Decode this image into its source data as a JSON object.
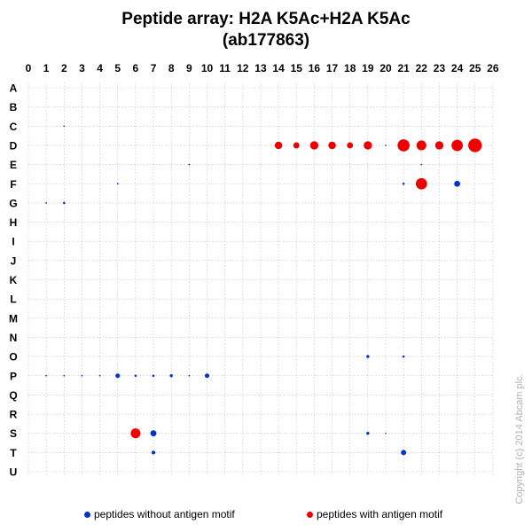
{
  "title": {
    "line1": "Peptide array:  H2A  K5Ac+H2A  K5Ac",
    "line2": "(ab177863)"
  },
  "legend": {
    "without_motif": "peptides without antigen motif",
    "with_motif": "peptides with antigen motif"
  },
  "copyright": "Copyright (c) 2014 Abcam plc.",
  "colors": {
    "without_motif": "#0033cc",
    "with_motif": "#ee0000",
    "grid": "#bfbfbf"
  },
  "chart_data": {
    "type": "scatter",
    "title": "Peptide array:  H2A  K5Ac+H2A  K5Ac (ab177863)",
    "x_ticks": [
      0,
      1,
      2,
      3,
      4,
      5,
      6,
      7,
      8,
      9,
      10,
      11,
      12,
      13,
      14,
      15,
      16,
      17,
      18,
      19,
      20,
      21,
      22,
      23,
      24,
      25,
      26
    ],
    "y_ticks": [
      "A",
      "B",
      "C",
      "D",
      "E",
      "F",
      "G",
      "H",
      "I",
      "J",
      "K",
      "L",
      "M",
      "N",
      "O",
      "P",
      "Q",
      "R",
      "S",
      "T",
      "U"
    ],
    "x_axis_position": "top",
    "grid": true,
    "legend_position": "bottom",
    "series": [
      {
        "name": "peptides without antigen motif",
        "color": "#0033cc",
        "points": [
          {
            "col": 2,
            "row": "C",
            "signal": 1
          },
          {
            "col": 20,
            "row": "D",
            "signal": 1
          },
          {
            "col": 9,
            "row": "E",
            "signal": 1
          },
          {
            "col": 5,
            "row": "F",
            "signal": 1
          },
          {
            "col": 21,
            "row": "F",
            "signal": 1.5
          },
          {
            "col": 24,
            "row": "F",
            "signal": 4
          },
          {
            "col": 1,
            "row": "G",
            "signal": 1
          },
          {
            "col": 2,
            "row": "G",
            "signal": 1.5
          },
          {
            "col": 19,
            "row": "O",
            "signal": 2
          },
          {
            "col": 21,
            "row": "O",
            "signal": 1.5
          },
          {
            "col": 1,
            "row": "P",
            "signal": 1
          },
          {
            "col": 2,
            "row": "P",
            "signal": 1
          },
          {
            "col": 3,
            "row": "P",
            "signal": 1
          },
          {
            "col": 4,
            "row": "P",
            "signal": 1
          },
          {
            "col": 5,
            "row": "P",
            "signal": 3
          },
          {
            "col": 6,
            "row": "P",
            "signal": 1.5
          },
          {
            "col": 7,
            "row": "P",
            "signal": 1.5
          },
          {
            "col": 8,
            "row": "P",
            "signal": 2
          },
          {
            "col": 9,
            "row": "P",
            "signal": 1
          },
          {
            "col": 10,
            "row": "P",
            "signal": 3
          },
          {
            "col": 7,
            "row": "S",
            "signal": 4
          },
          {
            "col": 19,
            "row": "S",
            "signal": 2
          },
          {
            "col": 20,
            "row": "S",
            "signal": 1
          },
          {
            "col": 7,
            "row": "T",
            "signal": 2.5
          },
          {
            "col": 21,
            "row": "T",
            "signal": 3.5
          }
        ]
      },
      {
        "name": "peptides with antigen motif",
        "color": "#ee0000",
        "points": [
          {
            "col": 14,
            "row": "D",
            "signal": 5
          },
          {
            "col": 15,
            "row": "D",
            "signal": 4
          },
          {
            "col": 16,
            "row": "D",
            "signal": 5.5
          },
          {
            "col": 17,
            "row": "D",
            "signal": 5
          },
          {
            "col": 18,
            "row": "D",
            "signal": 4
          },
          {
            "col": 19,
            "row": "D",
            "signal": 5.5
          },
          {
            "col": 21,
            "row": "D",
            "signal": 8
          },
          {
            "col": 22,
            "row": "D",
            "signal": 6.5
          },
          {
            "col": 23,
            "row": "D",
            "signal": 5.5
          },
          {
            "col": 24,
            "row": "D",
            "signal": 7.5
          },
          {
            "col": 25,
            "row": "D",
            "signal": 9
          },
          {
            "col": 22,
            "row": "E",
            "signal": 1
          },
          {
            "col": 22,
            "row": "F",
            "signal": 7.5
          },
          {
            "col": 6,
            "row": "S",
            "signal": 6.5
          }
        ]
      }
    ]
  }
}
